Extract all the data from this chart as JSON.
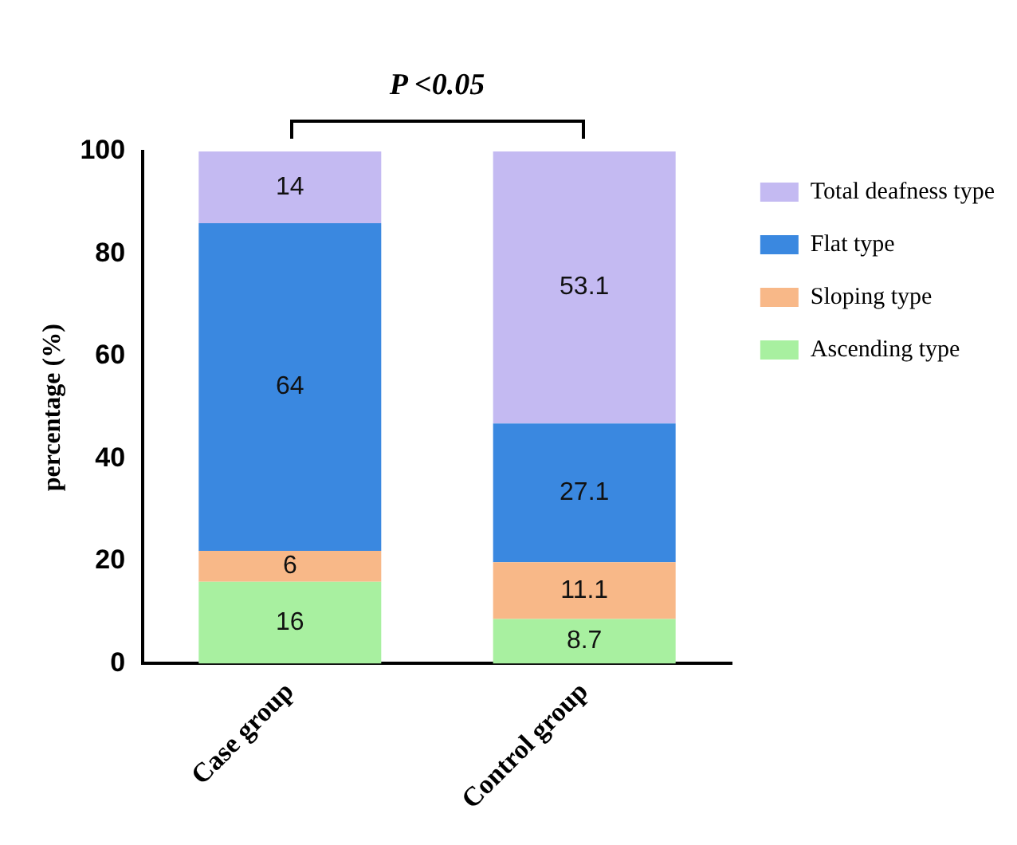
{
  "chart_data": {
    "type": "bar",
    "stacked": true,
    "ylabel": "percentage (%)",
    "categories": [
      "Case group",
      "Control group"
    ],
    "series": [
      {
        "name": "Ascending type",
        "color": "#a8f0a0",
        "values": [
          16,
          8.7
        ]
      },
      {
        "name": "Sloping type",
        "color": "#f8b888",
        "values": [
          6,
          11.1
        ]
      },
      {
        "name": "Flat type",
        "color": "#3a88e0",
        "values": [
          64,
          27.1
        ]
      },
      {
        "name": "Total deafness type",
        "color": "#c4baf2",
        "values": [
          14,
          53.1
        ]
      }
    ],
    "ylim": [
      0,
      100
    ],
    "yticks": [
      0,
      20,
      40,
      60,
      80,
      100
    ],
    "grid": false,
    "legend": "top right",
    "data_labels": true,
    "annotations": [
      "P <0.05"
    ]
  }
}
